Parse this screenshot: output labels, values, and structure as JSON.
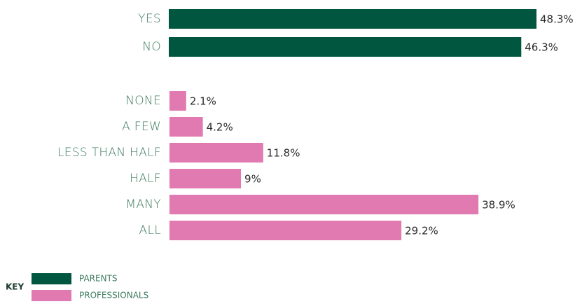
{
  "chart_data": {
    "type": "bar",
    "orientation": "horizontal",
    "legend_title": "KEY",
    "series": [
      {
        "name": "PARENTS",
        "color": "#00563f",
        "categories": [
          "YES",
          "NO"
        ],
        "values": [
          48.3,
          46.3
        ],
        "value_labels": [
          "48.3%",
          "46.3%"
        ]
      },
      {
        "name": "PROFESSIONALS",
        "color": "#e07ab0",
        "categories": [
          "NONE",
          "A FEW",
          "LESS THAN HALF",
          "HALF",
          "MANY",
          "ALL"
        ],
        "values": [
          2.1,
          4.2,
          11.8,
          9,
          38.9,
          29.2
        ],
        "value_labels": [
          "2.1%",
          "4.2%",
          "11.8%",
          "9%",
          "38.9%",
          "29.2%"
        ]
      }
    ]
  }
}
